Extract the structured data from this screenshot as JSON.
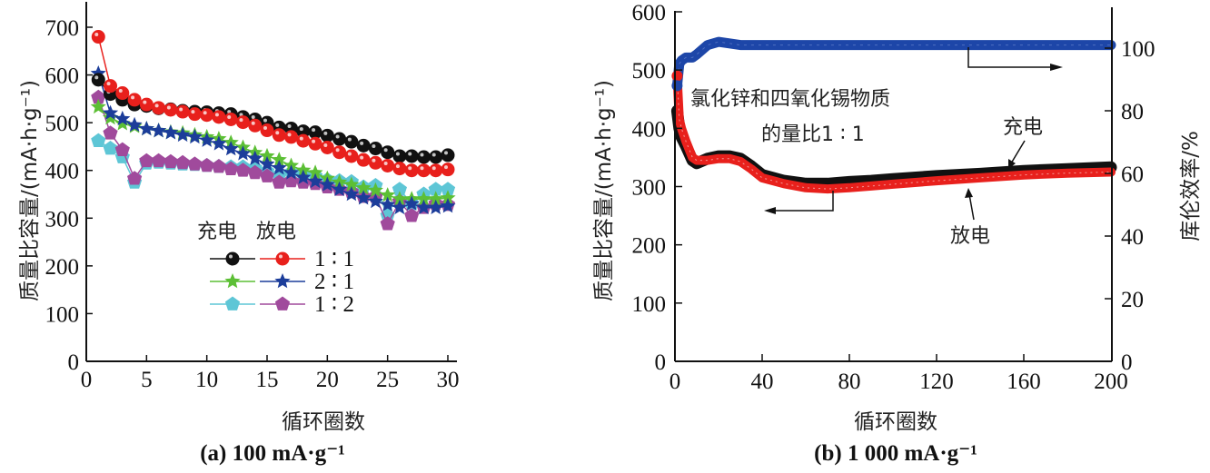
{
  "chart_data": [
    {
      "type": "line",
      "title": "",
      "caption": "(a) 100 mA·g⁻¹",
      "xlabel": "循环圈数",
      "ylabel": "质量比容量/(mA·h·g⁻¹)",
      "xlim": [
        0,
        31
      ],
      "ylim": [
        0,
        740
      ],
      "xticks": [
        "0",
        "5",
        "10",
        "15",
        "20",
        "25",
        "30"
      ],
      "xtick_values": [
        0,
        5,
        10,
        15,
        20,
        25,
        30
      ],
      "yticks": [
        "0",
        "100",
        "200",
        "300",
        "400",
        "500",
        "600",
        "700"
      ],
      "ytick_values": [
        0,
        100,
        200,
        300,
        400,
        500,
        600,
        700
      ],
      "grid": false,
      "legend": {
        "placement": "center-left",
        "header_charge": "充电",
        "header_discharge": "放电",
        "rows": [
          {
            "label": "1 ∶ 1",
            "charge": "1:1 charge",
            "discharge": "1:1 discharge"
          },
          {
            "label": "2 ∶ 1",
            "charge": "2:1 charge",
            "discharge": "2:1 discharge"
          },
          {
            "label": "1 ∶ 2",
            "charge": "1:2 charge",
            "discharge": "1:2 discharge"
          }
        ]
      },
      "x": [
        1,
        2,
        3,
        4,
        5,
        6,
        7,
        8,
        9,
        10,
        11,
        12,
        13,
        14,
        15,
        16,
        17,
        18,
        19,
        20,
        21,
        22,
        23,
        24,
        25,
        26,
        27,
        28,
        29,
        30
      ],
      "series": [
        {
          "name": "1:1 charge",
          "color": "#111111",
          "marker": "circle",
          "values": [
            590,
            560,
            548,
            538,
            535,
            530,
            528,
            525,
            523,
            522,
            520,
            518,
            512,
            507,
            500,
            490,
            488,
            482,
            480,
            473,
            466,
            460,
            452,
            446,
            438,
            430,
            430,
            428,
            428,
            432
          ]
        },
        {
          "name": "1:1 discharge",
          "color": "#e8201c",
          "marker": "circle",
          "values": [
            680,
            577,
            562,
            548,
            538,
            531,
            527,
            523,
            518,
            516,
            512,
            507,
            501,
            494,
            484,
            474,
            470,
            462,
            456,
            448,
            438,
            430,
            422,
            416,
            410,
            404,
            400,
            400,
            400,
            402
          ]
        },
        {
          "name": "2:1 charge",
          "color": "#5cbf35",
          "marker": "star",
          "values": [
            533,
            510,
            498,
            492,
            487,
            483,
            480,
            478,
            474,
            470,
            466,
            458,
            448,
            437,
            430,
            422,
            410,
            400,
            395,
            383,
            375,
            370,
            363,
            358,
            348,
            340,
            340,
            340,
            340,
            342
          ]
        },
        {
          "name": "2:1 discharge",
          "color": "#1c3d9a",
          "marker": "star",
          "values": [
            603,
            520,
            508,
            495,
            487,
            483,
            479,
            474,
            470,
            463,
            456,
            445,
            435,
            425,
            413,
            405,
            395,
            385,
            377,
            370,
            360,
            350,
            342,
            335,
            328,
            322,
            330,
            322,
            322,
            325
          ]
        },
        {
          "name": "1:2 charge",
          "color": "#5ec6d6",
          "marker": "pentagon",
          "values": [
            462,
            446,
            428,
            375,
            415,
            417,
            415,
            413,
            412,
            410,
            408,
            407,
            407,
            405,
            398,
            390,
            395,
            390,
            388,
            380,
            378,
            376,
            365,
            368,
            305,
            360,
            330,
            350,
            360,
            360
          ]
        },
        {
          "name": "1:2 discharge",
          "color": "#a04a9c",
          "marker": "pentagon",
          "values": [
            553,
            478,
            443,
            383,
            420,
            420,
            418,
            416,
            413,
            410,
            408,
            403,
            400,
            395,
            388,
            375,
            378,
            375,
            372,
            365,
            360,
            355,
            345,
            345,
            288,
            335,
            305,
            322,
            330,
            328
          ]
        }
      ]
    },
    {
      "type": "line",
      "title": "",
      "caption": "(b) 1 000 mA·g⁻¹",
      "xlabel": "循环圈数",
      "ylabel": "质量比容量/(mA·h·g⁻¹)",
      "y2label": "库伦效率/%",
      "xlim": [
        0,
        200
      ],
      "ylim": [
        0,
        600
      ],
      "y2lim": [
        0,
        110
      ],
      "xticks": [
        "0",
        "40",
        "80",
        "120",
        "160",
        "200"
      ],
      "xtick_values": [
        0,
        40,
        80,
        120,
        160,
        200
      ],
      "yticks": [
        "0",
        "100",
        "200",
        "300",
        "400",
        "500",
        "600"
      ],
      "ytick_values": [
        0,
        100,
        200,
        300,
        400,
        500,
        600
      ],
      "y2ticks": [
        "0",
        "20",
        "40",
        "60",
        "80",
        "100"
      ],
      "y2tick_values": [
        0,
        20,
        40,
        60,
        80,
        100
      ],
      "grid": false,
      "annotations": {
        "sample_line1": "氯化锌和四氧化锡物质",
        "sample_line2": "的量比1 ∶ 1",
        "charge_label": "充电",
        "discharge_label": "放电"
      },
      "series": [
        {
          "name": "充电",
          "color": "#111111",
          "axis": "left",
          "x": [
            1,
            2,
            3,
            5,
            8,
            10,
            15,
            20,
            25,
            30,
            35,
            40,
            50,
            60,
            70,
            80,
            90,
            100,
            120,
            140,
            160,
            180,
            200
          ],
          "values": [
            430,
            400,
            385,
            370,
            345,
            340,
            348,
            352,
            352,
            348,
            335,
            320,
            310,
            305,
            305,
            308,
            310,
            313,
            318,
            322,
            327,
            330,
            333
          ]
        },
        {
          "name": "放电",
          "color": "#e8201c",
          "axis": "left",
          "x": [
            1,
            2,
            3,
            5,
            8,
            10,
            15,
            20,
            25,
            30,
            35,
            40,
            50,
            60,
            70,
            80,
            90,
            100,
            120,
            140,
            160,
            180,
            200
          ],
          "values": [
            490,
            415,
            400,
            378,
            350,
            345,
            345,
            348,
            348,
            343,
            330,
            315,
            305,
            298,
            296,
            298,
            301,
            304,
            310,
            315,
            320,
            323,
            325
          ]
        },
        {
          "name": "库伦效率",
          "color": "#1d46a8",
          "axis": "right",
          "x": [
            1,
            2,
            3,
            5,
            8,
            10,
            15,
            20,
            25,
            30,
            40,
            60,
            80,
            100,
            120,
            140,
            160,
            180,
            200
          ],
          "values": [
            88,
            95,
            96,
            97,
            97,
            98,
            101,
            102,
            101.5,
            101,
            101,
            101,
            101,
            101,
            101,
            101,
            101,
            101,
            101
          ]
        }
      ]
    }
  ]
}
